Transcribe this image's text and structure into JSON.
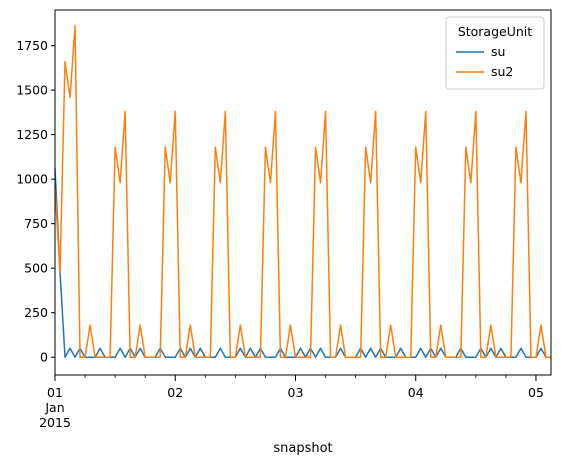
{
  "chart_data": {
    "type": "line",
    "xlabel": "snapshot",
    "ylabel": "",
    "x_tick_labels": [
      {
        "lines": [
          "01",
          "Jan",
          "2015"
        ],
        "hour": 0
      },
      {
        "lines": [
          "02"
        ],
        "hour": 24
      },
      {
        "lines": [
          "03"
        ],
        "hour": 48
      },
      {
        "lines": [
          "04"
        ],
        "hour": 72
      },
      {
        "lines": [
          "05"
        ],
        "hour": 96
      }
    ],
    "x_start": "2015-01-01 00:00",
    "x_step_hours": 1,
    "xlim": [
      0,
      99
    ],
    "ylim": [
      -100,
      1950
    ],
    "y_ticks": [
      0,
      250,
      500,
      750,
      1000,
      1250,
      1500,
      1750
    ],
    "y_tick_labels": [
      "0",
      "250",
      "500",
      "750",
      "1000",
      "1250",
      "1500",
      "1750"
    ],
    "legend": {
      "title": "StorageUnit",
      "position": "top-right"
    },
    "series": [
      {
        "name": "su",
        "color": "#1f77b4",
        "values": [
          1060,
          480,
          0,
          50,
          0,
          50,
          0,
          0,
          0,
          50,
          0,
          0,
          0,
          50,
          0,
          50,
          0,
          50,
          0,
          0,
          0,
          50,
          0,
          0,
          0,
          50,
          0,
          50,
          0,
          50,
          0,
          0,
          0,
          50,
          0,
          0,
          0,
          50,
          0,
          50,
          0,
          50,
          0,
          0,
          0,
          50,
          0,
          0,
          0,
          50,
          0,
          50,
          0,
          50,
          0,
          0,
          0,
          50,
          0,
          0,
          0,
          50,
          0,
          50,
          0,
          50,
          0,
          0,
          0,
          50,
          0,
          0,
          0,
          50,
          0,
          50,
          0,
          50,
          0,
          0,
          0,
          50,
          0,
          0,
          0,
          50,
          0,
          50,
          0,
          50,
          0,
          0,
          0,
          50,
          0,
          0,
          0,
          50,
          0,
          0
        ]
      },
      {
        "name": "su2",
        "color": "#ff7f0e",
        "values": [
          950,
          480,
          1660,
          1460,
          1860,
          0,
          0,
          180,
          0,
          0,
          0,
          0,
          1180,
          980,
          1380,
          0,
          0,
          180,
          0,
          0,
          0,
          0,
          1180,
          980,
          1380,
          0,
          0,
          180,
          0,
          0,
          0,
          0,
          1180,
          980,
          1380,
          0,
          0,
          180,
          0,
          0,
          0,
          0,
          1180,
          980,
          1380,
          0,
          0,
          180,
          0,
          0,
          0,
          0,
          1180,
          980,
          1380,
          0,
          0,
          180,
          0,
          0,
          0,
          0,
          1180,
          980,
          1380,
          0,
          0,
          180,
          0,
          0,
          0,
          0,
          1180,
          980,
          1380,
          0,
          0,
          180,
          0,
          0,
          0,
          0,
          1180,
          980,
          1380,
          0,
          0,
          180,
          0,
          0,
          0,
          0,
          1180,
          980,
          1380,
          0,
          0,
          180,
          0,
          0
        ]
      }
    ]
  }
}
